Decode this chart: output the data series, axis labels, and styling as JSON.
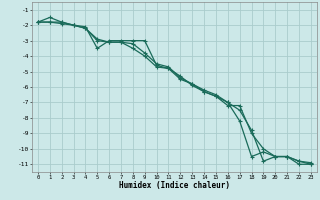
{
  "xlabel": "Humidex (Indice chaleur)",
  "bg_color": "#cce8e8",
  "grid_color": "#aacccc",
  "line_color": "#1a6b5a",
  "xlim": [
    -0.5,
    23.5
  ],
  "ylim": [
    -11.5,
    -0.5
  ],
  "yticks": [
    -1,
    -2,
    -3,
    -4,
    -5,
    -6,
    -7,
    -8,
    -9,
    -10,
    -11
  ],
  "xticks": [
    0,
    1,
    2,
    3,
    4,
    5,
    6,
    7,
    8,
    9,
    10,
    11,
    12,
    13,
    14,
    15,
    16,
    17,
    18,
    19,
    20,
    21,
    22,
    23
  ],
  "line1_x": [
    0,
    1,
    2,
    3,
    4,
    5,
    6,
    7,
    8,
    9,
    10,
    11,
    12,
    13,
    14,
    15,
    16,
    17,
    18,
    19,
    20,
    21,
    22,
    23
  ],
  "line1_y": [
    -1.8,
    -1.5,
    -1.8,
    -2.0,
    -2.1,
    -3.5,
    -3.0,
    -3.0,
    -3.0,
    -3.0,
    -4.6,
    -4.8,
    -5.5,
    -5.8,
    -6.2,
    -6.5,
    -7.0,
    -8.2,
    -10.5,
    -10.2,
    -10.5,
    -10.5,
    -10.8,
    -10.9
  ],
  "line2_x": [
    0,
    1,
    2,
    3,
    4,
    5,
    6,
    7,
    8,
    9,
    10,
    11,
    12,
    13,
    14,
    15,
    16,
    17,
    18,
    19,
    20,
    21,
    22,
    23
  ],
  "line2_y": [
    -1.8,
    -1.8,
    -1.9,
    -2.0,
    -2.2,
    -2.9,
    -3.1,
    -3.1,
    -3.2,
    -3.8,
    -4.5,
    -4.7,
    -5.4,
    -5.8,
    -6.3,
    -6.6,
    -7.0,
    -7.5,
    -8.8,
    -10.8,
    -10.5,
    -10.5,
    -11.0,
    -11.0
  ],
  "line3_x": [
    0,
    1,
    2,
    3,
    4,
    5,
    6,
    7,
    8,
    9,
    10,
    11,
    12,
    13,
    14,
    15,
    16,
    17,
    18,
    19,
    20,
    21,
    22,
    23
  ],
  "line3_y": [
    -1.8,
    -1.8,
    -1.8,
    -2.0,
    -2.2,
    -3.0,
    -3.1,
    -3.1,
    -3.5,
    -4.0,
    -4.7,
    -4.8,
    -5.3,
    -5.9,
    -6.3,
    -6.6,
    -7.2,
    -7.2,
    -9.0,
    -10.0,
    -10.5,
    -10.5,
    -10.8,
    -11.0
  ]
}
